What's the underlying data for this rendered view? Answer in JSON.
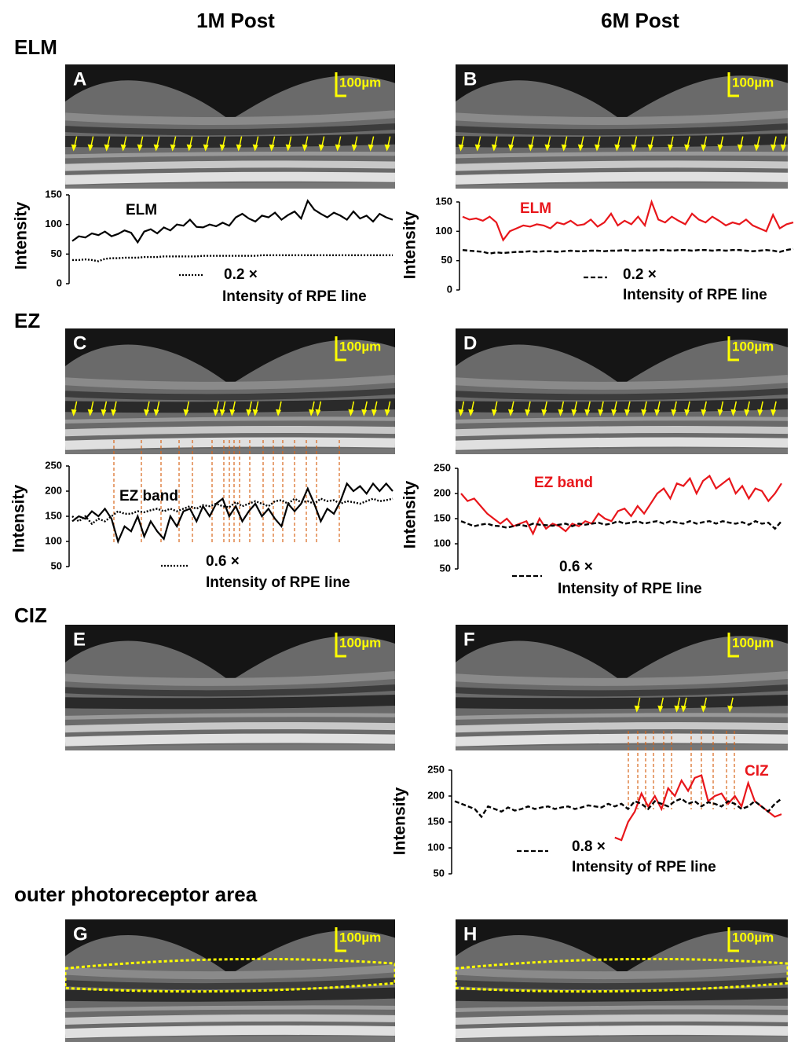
{
  "columns": [
    "1M Post",
    "6M Post"
  ],
  "rows": [
    "ELM",
    "EZ",
    "CIZ",
    "outer photoreceptor area"
  ],
  "panels": [
    {
      "letter": "A",
      "scale": "100µm"
    },
    {
      "letter": "B",
      "scale": "100µm"
    },
    {
      "letter": "C",
      "scale": "100µm"
    },
    {
      "letter": "D",
      "scale": "100µm"
    },
    {
      "letter": "E",
      "scale": "100µm"
    },
    {
      "letter": "F",
      "scale": "100µm"
    },
    {
      "letter": "G",
      "scale": "100µm"
    },
    {
      "letter": "H",
      "scale": "100µm"
    }
  ],
  "chart_data": [
    {
      "type": "line",
      "ylabel": "Intensity",
      "ylim": [
        0,
        150
      ],
      "yticks": [
        0,
        50,
        100,
        150
      ],
      "annotation": "Intensity of RPE line",
      "series": [
        {
          "name": "ELM",
          "color": "#000000",
          "style": "solid",
          "values": [
            72,
            80,
            78,
            85,
            82,
            88,
            80,
            84,
            90,
            86,
            70,
            88,
            92,
            85,
            95,
            90,
            100,
            98,
            108,
            96,
            95,
            100,
            97,
            103,
            98,
            112,
            118,
            110,
            105,
            115,
            112,
            120,
            108,
            116,
            122,
            110,
            140,
            125,
            118,
            112,
            120,
            115,
            108,
            122,
            110,
            115,
            105,
            118,
            112,
            108
          ]
        },
        {
          "name": "0.2 ×",
          "color": "#000000",
          "style": "dotted",
          "values": [
            40,
            40,
            41,
            40,
            38,
            42,
            43,
            43,
            44,
            44,
            44,
            45,
            45,
            45,
            46,
            46,
            46,
            46,
            46,
            46,
            47,
            47,
            47,
            47,
            47,
            47,
            47,
            47,
            47,
            48,
            48,
            48,
            48,
            48,
            48,
            48,
            48,
            48,
            48,
            48,
            48,
            48,
            48,
            48,
            48,
            48,
            48,
            48,
            48,
            48
          ]
        }
      ]
    },
    {
      "type": "line",
      "ylabel": "Intensity",
      "ylim": [
        0,
        150
      ],
      "yticks": [
        0,
        50,
        100,
        150
      ],
      "annotation": "Intensity of RPE line",
      "series": [
        {
          "name": "ELM",
          "color": "#e8161b",
          "style": "solid",
          "values": [
            125,
            120,
            122,
            118,
            125,
            115,
            85,
            100,
            105,
            110,
            108,
            112,
            110,
            105,
            115,
            112,
            118,
            110,
            112,
            120,
            108,
            115,
            130,
            110,
            118,
            112,
            125,
            110,
            150,
            120,
            115,
            125,
            118,
            112,
            130,
            120,
            115,
            125,
            118,
            110,
            115,
            112,
            120,
            110,
            105,
            100,
            128,
            105,
            112,
            115
          ]
        },
        {
          "name": "0.2 ×",
          "color": "#000000",
          "style": "dashed",
          "values": [
            68,
            67,
            66,
            65,
            62,
            64,
            63,
            64,
            65,
            65,
            66,
            65,
            66,
            66,
            65,
            66,
            67,
            66,
            66,
            67,
            67,
            66,
            67,
            67,
            68,
            67,
            67,
            68,
            67,
            68,
            68,
            67,
            68,
            68,
            67,
            68,
            68,
            67,
            68,
            67,
            68,
            68,
            67,
            66,
            67,
            68,
            67,
            65,
            68,
            70
          ]
        }
      ]
    },
    {
      "type": "line",
      "ylabel": "Intensity",
      "ylim": [
        50,
        250
      ],
      "yticks": [
        50,
        100,
        150,
        200,
        250
      ],
      "annotation": "Intensity of RPE line",
      "series": [
        {
          "name": "EZ band",
          "color": "#000000",
          "style": "solid",
          "values": [
            140,
            150,
            145,
            160,
            150,
            165,
            145,
            100,
            130,
            120,
            150,
            110,
            140,
            120,
            105,
            150,
            130,
            160,
            165,
            140,
            170,
            150,
            175,
            185,
            150,
            170,
            140,
            160,
            175,
            150,
            165,
            145,
            130,
            175,
            160,
            175,
            205,
            175,
            140,
            165,
            155,
            180,
            215,
            200,
            210,
            195,
            215,
            200,
            215,
            200
          ]
        },
        {
          "name": "0.6 ×",
          "color": "#000000",
          "style": "dotted",
          "values": [
            150,
            140,
            150,
            135,
            145,
            140,
            150,
            160,
            155,
            155,
            160,
            158,
            162,
            165,
            160,
            165,
            160,
            165,
            170,
            165,
            172,
            170,
            175,
            170,
            168,
            178,
            170,
            175,
            180,
            175,
            170,
            180,
            182,
            175,
            185,
            178,
            180,
            175,
            185,
            180,
            182,
            175,
            180,
            178,
            175,
            180,
            185,
            180,
            182,
            185
          ]
        }
      ]
    },
    {
      "type": "line",
      "ylabel": "Intensity",
      "ylim": [
        50,
        250
      ],
      "yticks": [
        50,
        100,
        150,
        200,
        250
      ],
      "annotation": "Intensity of RPE line",
      "series": [
        {
          "name": "EZ band",
          "color": "#e8161b",
          "style": "solid",
          "values": [
            200,
            185,
            190,
            175,
            160,
            150,
            140,
            150,
            135,
            140,
            145,
            120,
            150,
            130,
            140,
            135,
            125,
            140,
            135,
            145,
            140,
            160,
            150,
            145,
            165,
            170,
            155,
            175,
            160,
            180,
            200,
            210,
            190,
            220,
            215,
            230,
            200,
            225,
            235,
            210,
            220,
            230,
            200,
            215,
            190,
            210,
            205,
            185,
            200,
            220
          ]
        },
        {
          "name": "0.6 ×",
          "color": "#000000",
          "style": "dashed",
          "values": [
            145,
            140,
            135,
            138,
            140,
            136,
            135,
            132,
            135,
            138,
            135,
            140,
            138,
            137,
            136,
            138,
            140,
            135,
            140,
            138,
            140,
            142,
            138,
            140,
            145,
            140,
            142,
            145,
            140,
            143,
            145,
            140,
            145,
            142,
            140,
            145,
            140,
            143,
            145,
            140,
            145,
            142,
            140,
            143,
            138,
            145,
            140,
            142,
            130,
            145
          ]
        }
      ]
    },
    {
      "type": "line",
      "ylabel": "Intensity",
      "ylim": [
        50,
        250
      ],
      "yticks": [
        50,
        100,
        150,
        200,
        250
      ],
      "annotation": "Intensity of RPE line",
      "series": [
        {
          "name": "CIZ",
          "color": "#e8161b",
          "style": "solid",
          "values": [
            null,
            null,
            null,
            null,
            null,
            null,
            null,
            null,
            null,
            null,
            null,
            null,
            null,
            null,
            null,
            null,
            null,
            null,
            null,
            null,
            null,
            null,
            null,
            null,
            120,
            115,
            150,
            170,
            205,
            180,
            200,
            175,
            215,
            200,
            230,
            210,
            235,
            240,
            190,
            200,
            205,
            185,
            200,
            180,
            225,
            190,
            180,
            170,
            160,
            165
          ]
        },
        {
          "name": "0.8 ×",
          "color": "#000000",
          "style": "dashed",
          "values": [
            190,
            185,
            180,
            175,
            160,
            180,
            175,
            170,
            178,
            172,
            175,
            180,
            175,
            178,
            180,
            175,
            178,
            180,
            175,
            178,
            182,
            180,
            178,
            185,
            180,
            185,
            175,
            190,
            185,
            175,
            190,
            185,
            180,
            190,
            195,
            185,
            190,
            180,
            188,
            185,
            180,
            190,
            185,
            175,
            180,
            190,
            180,
            170,
            185,
            195
          ]
        }
      ]
    }
  ]
}
